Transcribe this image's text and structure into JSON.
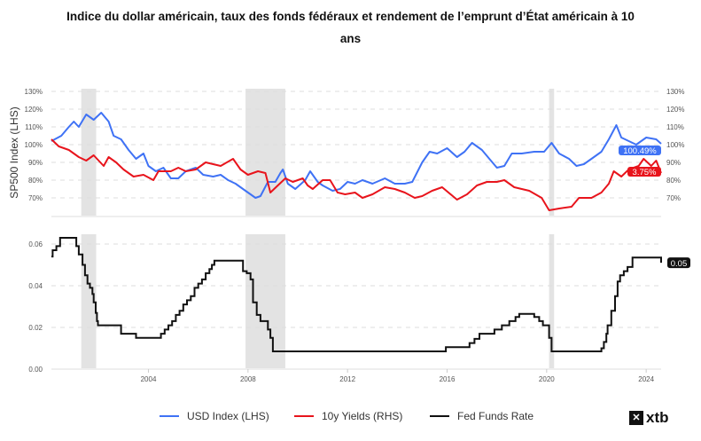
{
  "title_lines": [
    "Indice du dollar américain, taux des fonds fédéraux et rendement de l’emprunt d’État américain à 10",
    "ans"
  ],
  "brand": "xtb",
  "colors": {
    "usd": "#3f72f5",
    "yields": "#e8141c",
    "fed": "#111111",
    "recession": "#e3e3e3"
  },
  "chart_data": [
    {
      "type": "line",
      "ylabel": "SP500 Index (LHS)",
      "xlim": [
        2000.1,
        2024.6
      ],
      "ylim": [
        60,
        130
      ],
      "yticks": [
        "70%",
        "80%",
        "90%",
        "100%",
        "110%",
        "120%",
        "130%"
      ],
      "ytick_values": [
        70,
        80,
        90,
        100,
        110,
        120,
        130
      ],
      "grid": true,
      "recessions": [
        [
          2001.3,
          2001.9
        ],
        [
          2007.9,
          2009.5
        ],
        [
          2020.1,
          2020.3
        ]
      ],
      "series": [
        {
          "name": "USD Index (LHS)",
          "color": "#3f72f5",
          "last_label": "100.49%",
          "points": [
            [
              2000.1,
              102
            ],
            [
              2000.5,
              105
            ],
            [
              2000.8,
              110
            ],
            [
              2001.0,
              113
            ],
            [
              2001.2,
              110
            ],
            [
              2001.5,
              117
            ],
            [
              2001.8,
              114
            ],
            [
              2002.1,
              118
            ],
            [
              2002.4,
              113
            ],
            [
              2002.6,
              105
            ],
            [
              2002.9,
              103
            ],
            [
              2003.2,
              97
            ],
            [
              2003.5,
              92
            ],
            [
              2003.8,
              95
            ],
            [
              2004.0,
              88
            ],
            [
              2004.3,
              85
            ],
            [
              2004.6,
              87
            ],
            [
              2004.9,
              81
            ],
            [
              2005.2,
              81
            ],
            [
              2005.5,
              85
            ],
            [
              2005.9,
              87
            ],
            [
              2006.2,
              83
            ],
            [
              2006.6,
              82
            ],
            [
              2006.9,
              83
            ],
            [
              2007.2,
              80
            ],
            [
              2007.5,
              78
            ],
            [
              2007.9,
              74
            ],
            [
              2008.1,
              72
            ],
            [
              2008.3,
              70
            ],
            [
              2008.5,
              71
            ],
            [
              2008.8,
              79
            ],
            [
              2009.1,
              79
            ],
            [
              2009.3,
              84
            ],
            [
              2009.4,
              86
            ],
            [
              2009.6,
              78
            ],
            [
              2009.9,
              75
            ],
            [
              2010.3,
              80
            ],
            [
              2010.5,
              85
            ],
            [
              2010.8,
              79
            ],
            [
              2011.0,
              77
            ],
            [
              2011.4,
              74
            ],
            [
              2011.7,
              75
            ],
            [
              2012.0,
              79
            ],
            [
              2012.3,
              78
            ],
            [
              2012.6,
              80
            ],
            [
              2013.0,
              78
            ],
            [
              2013.5,
              81
            ],
            [
              2013.9,
              78
            ],
            [
              2014.3,
              78
            ],
            [
              2014.6,
              79
            ],
            [
              2015.0,
              90
            ],
            [
              2015.3,
              96
            ],
            [
              2015.6,
              95
            ],
            [
              2016.0,
              98
            ],
            [
              2016.4,
              93
            ],
            [
              2016.7,
              96
            ],
            [
              2017.0,
              101
            ],
            [
              2017.4,
              97
            ],
            [
              2017.7,
              92
            ],
            [
              2018.0,
              87
            ],
            [
              2018.3,
              88
            ],
            [
              2018.6,
              95
            ],
            [
              2019.0,
              95
            ],
            [
              2019.5,
              96
            ],
            [
              2019.9,
              96
            ],
            [
              2020.2,
              101
            ],
            [
              2020.5,
              95
            ],
            [
              2020.9,
              92
            ],
            [
              2021.2,
              88
            ],
            [
              2021.5,
              89
            ],
            [
              2021.9,
              93
            ],
            [
              2022.2,
              96
            ],
            [
              2022.5,
              103
            ],
            [
              2022.8,
              111
            ],
            [
              2023.0,
              104
            ],
            [
              2023.3,
              102
            ],
            [
              2023.6,
              100
            ],
            [
              2024.0,
              104
            ],
            [
              2024.4,
              103
            ],
            [
              2024.6,
              100.5
            ]
          ]
        },
        {
          "name": "10y Yields (RHS)",
          "color": "#e8141c",
          "last_label": "3.75%",
          "points": [
            [
              2000.1,
              103
            ],
            [
              2000.4,
              99
            ],
            [
              2000.8,
              97
            ],
            [
              2001.2,
              93
            ],
            [
              2001.5,
              91
            ],
            [
              2001.8,
              94
            ],
            [
              2002.2,
              88
            ],
            [
              2002.4,
              93
            ],
            [
              2002.7,
              90
            ],
            [
              2003.0,
              86
            ],
            [
              2003.4,
              82
            ],
            [
              2003.8,
              83
            ],
            [
              2004.2,
              80
            ],
            [
              2004.4,
              85
            ],
            [
              2004.9,
              85
            ],
            [
              2005.2,
              87
            ],
            [
              2005.5,
              85
            ],
            [
              2005.9,
              86
            ],
            [
              2006.3,
              90
            ],
            [
              2006.6,
              89
            ],
            [
              2006.9,
              88
            ],
            [
              2007.4,
              92
            ],
            [
              2007.7,
              86
            ],
            [
              2008.0,
              83
            ],
            [
              2008.4,
              85
            ],
            [
              2008.7,
              84
            ],
            [
              2008.9,
              73
            ],
            [
              2009.2,
              77
            ],
            [
              2009.5,
              81
            ],
            [
              2009.8,
              79
            ],
            [
              2010.2,
              81
            ],
            [
              2010.4,
              77
            ],
            [
              2010.6,
              75
            ],
            [
              2011.0,
              80
            ],
            [
              2011.3,
              80
            ],
            [
              2011.6,
              73
            ],
            [
              2011.9,
              72
            ],
            [
              2012.3,
              73
            ],
            [
              2012.6,
              70
            ],
            [
              2013.0,
              72
            ],
            [
              2013.5,
              76
            ],
            [
              2013.9,
              75
            ],
            [
              2014.3,
              73
            ],
            [
              2014.7,
              70
            ],
            [
              2015.0,
              71
            ],
            [
              2015.4,
              74
            ],
            [
              2015.8,
              76
            ],
            [
              2016.4,
              69
            ],
            [
              2016.8,
              72
            ],
            [
              2017.2,
              77
            ],
            [
              2017.6,
              79
            ],
            [
              2018.0,
              79
            ],
            [
              2018.3,
              80
            ],
            [
              2018.7,
              76
            ],
            [
              2019.3,
              74
            ],
            [
              2019.8,
              70
            ],
            [
              2020.1,
              63
            ],
            [
              2020.5,
              64
            ],
            [
              2021.0,
              65
            ],
            [
              2021.3,
              70
            ],
            [
              2021.8,
              70
            ],
            [
              2022.2,
              73
            ],
            [
              2022.5,
              78
            ],
            [
              2022.7,
              85
            ],
            [
              2023.0,
              82
            ],
            [
              2023.3,
              86
            ],
            [
              2023.7,
              88
            ],
            [
              2023.9,
              92
            ],
            [
              2024.2,
              88
            ],
            [
              2024.4,
              91
            ],
            [
              2024.6,
              84
            ]
          ]
        }
      ]
    },
    {
      "type": "line",
      "step": true,
      "xlim": [
        2000.1,
        2024.6
      ],
      "ylim": [
        0,
        0.063
      ],
      "xticks": [
        "2004",
        "2008",
        "2012",
        "2016",
        "2020",
        "2024"
      ],
      "xtick_values": [
        2004,
        2008,
        2012,
        2016,
        2020,
        2024
      ],
      "yticks": [
        "0.00",
        "0.02",
        "0.04",
        "0.06"
      ],
      "ytick_values": [
        0,
        0.02,
        0.04,
        0.06
      ],
      "grid": true,
      "recessions": [
        [
          2001.3,
          2001.9
        ],
        [
          2007.9,
          2009.5
        ],
        [
          2020.1,
          2020.3
        ]
      ],
      "series": [
        {
          "name": "Fed Funds Rate",
          "color": "#111111",
          "last_label": "0.05",
          "points": [
            [
              2000.1,
              0.054
            ],
            [
              2000.15,
              0.057
            ],
            [
              2000.3,
              0.059
            ],
            [
              2000.45,
              0.063
            ],
            [
              2001.1,
              0.059
            ],
            [
              2001.2,
              0.055
            ],
            [
              2001.35,
              0.05
            ],
            [
              2001.45,
              0.045
            ],
            [
              2001.55,
              0.041
            ],
            [
              2001.65,
              0.039
            ],
            [
              2001.75,
              0.036
            ],
            [
              2001.8,
              0.032
            ],
            [
              2001.88,
              0.027
            ],
            [
              2001.93,
              0.023
            ],
            [
              2001.97,
              0.021
            ],
            [
              2002.9,
              0.017
            ],
            [
              2003.5,
              0.015
            ],
            [
              2004.5,
              0.017
            ],
            [
              2004.65,
              0.019
            ],
            [
              2004.8,
              0.021
            ],
            [
              2004.95,
              0.023
            ],
            [
              2005.1,
              0.026
            ],
            [
              2005.25,
              0.028
            ],
            [
              2005.4,
              0.031
            ],
            [
              2005.55,
              0.033
            ],
            [
              2005.7,
              0.035
            ],
            [
              2005.85,
              0.039
            ],
            [
              2006.0,
              0.041
            ],
            [
              2006.15,
              0.043
            ],
            [
              2006.3,
              0.046
            ],
            [
              2006.45,
              0.048
            ],
            [
              2006.55,
              0.05
            ],
            [
              2006.65,
              0.052
            ],
            [
              2007.8,
              0.047
            ],
            [
              2007.95,
              0.046
            ],
            [
              2008.1,
              0.043
            ],
            [
              2008.2,
              0.032
            ],
            [
              2008.35,
              0.026
            ],
            [
              2008.5,
              0.023
            ],
            [
              2008.8,
              0.019
            ],
            [
              2008.9,
              0.015
            ],
            [
              2009.0,
              0.0085
            ],
            [
              2015.95,
              0.0105
            ],
            [
              2016.9,
              0.0125
            ],
            [
              2017.1,
              0.0145
            ],
            [
              2017.3,
              0.017
            ],
            [
              2017.9,
              0.019
            ],
            [
              2018.2,
              0.021
            ],
            [
              2018.5,
              0.023
            ],
            [
              2018.75,
              0.025
            ],
            [
              2018.9,
              0.0265
            ],
            [
              2019.5,
              0.025
            ],
            [
              2019.7,
              0.023
            ],
            [
              2019.85,
              0.021
            ],
            [
              2020.1,
              0.015
            ],
            [
              2020.2,
              0.0085
            ],
            [
              2022.2,
              0.01
            ],
            [
              2022.3,
              0.013
            ],
            [
              2022.4,
              0.017
            ],
            [
              2022.45,
              0.021
            ],
            [
              2022.6,
              0.028
            ],
            [
              2022.75,
              0.035
            ],
            [
              2022.85,
              0.042
            ],
            [
              2022.95,
              0.045
            ],
            [
              2023.1,
              0.047
            ],
            [
              2023.25,
              0.049
            ],
            [
              2023.45,
              0.0535
            ],
            [
              2024.55,
              0.0535
            ],
            [
              2024.6,
              0.051
            ]
          ]
        }
      ]
    }
  ],
  "legend": [
    {
      "label": "USD Index (LHS)",
      "color": "#3f72f5"
    },
    {
      "label": "10y Yields (RHS)",
      "color": "#e8141c"
    },
    {
      "label": "Fed Funds Rate",
      "color": "#111111"
    }
  ]
}
